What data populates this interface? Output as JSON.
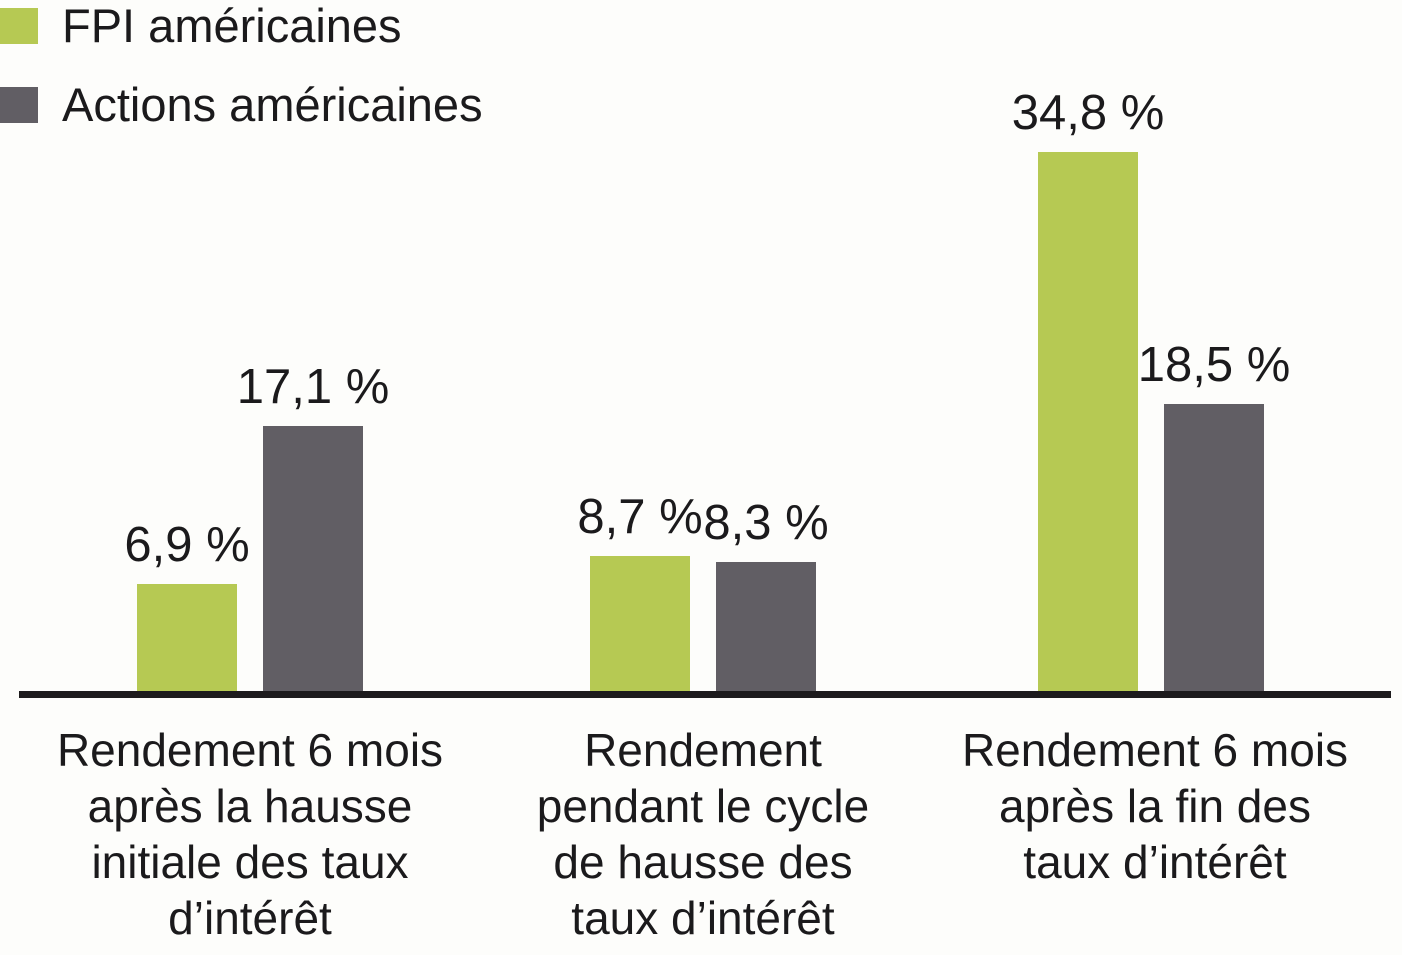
{
  "legend": {
    "items": [
      {
        "label": "FPI américaines",
        "color": "#b6c953"
      },
      {
        "label": "Actions américaines",
        "color": "#615e64"
      }
    ]
  },
  "colors": {
    "background": "#fdfdfb",
    "axis": "#1d1b1d",
    "text": "#1b1a1c",
    "green_series": "#b6c953",
    "gray_series": "#615e64"
  },
  "chart_data": {
    "type": "bar",
    "categories": [
      "Rendement 6 mois après la hausse initiale des taux d’intérêt",
      "Rendement pendant le cycle de hausse des taux d’intérêt",
      "Rendement 6 mois après la fin des taux d’intérêt"
    ],
    "category_lines": [
      [
        "Rendement 6 mois",
        "après la hausse",
        "initiale des taux",
        "d’intérêt"
      ],
      [
        "Rendement",
        "pendant le cycle",
        "de hausse des",
        "taux d’intérêt"
      ],
      [
        "Rendement 6 mois",
        "après la fin des",
        "taux d’intérêt"
      ]
    ],
    "series": [
      {
        "name": "FPI américaines",
        "color": "#b6c953",
        "values": [
          6.9,
          8.7,
          34.8
        ],
        "labels": [
          "6,9 %",
          "8,7 %",
          "34,8 %"
        ]
      },
      {
        "name": "Actions américaines",
        "color": "#615e64",
        "values": [
          17.1,
          8.3,
          18.5
        ],
        "labels": [
          "17,1 %",
          "8,3 %",
          "18,5 %"
        ]
      }
    ],
    "ylim": [
      0,
      36
    ],
    "grid": false,
    "axis_labels_visible": false,
    "legend_position": "top-left",
    "value_label_suffix": " %"
  }
}
